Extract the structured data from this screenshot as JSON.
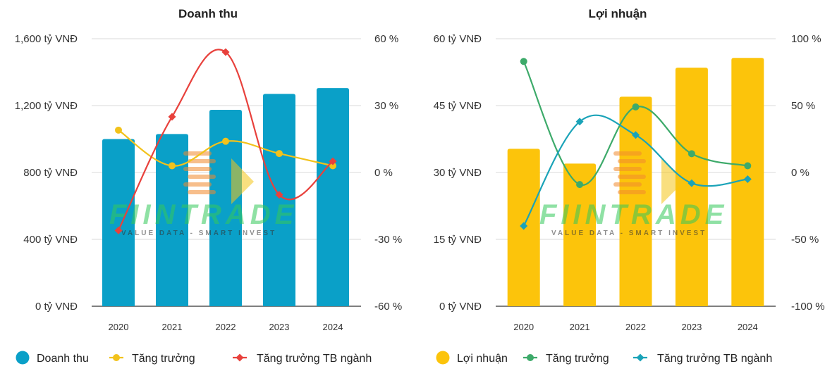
{
  "colors": {
    "revenue_bar": "#0aa0c8",
    "growth_yellow": "#f2c21b",
    "industry_red": "#e8413c",
    "profit_bar": "#fcc40b",
    "growth_green": "#3daa6a",
    "industry_teal": "#1aa3b8",
    "watermark_green": "#35c95a",
    "watermark_orange": "#f28a2e",
    "watermark_yellow": "#f5c518"
  },
  "watermark": {
    "brand": "FIINTRADE",
    "tagline": "VALUE DATA - SMART INVEST"
  },
  "chart_data": [
    {
      "type": "bar",
      "title": "Doanh thu",
      "categories": [
        "2020",
        "2021",
        "2022",
        "2023",
        "2024"
      ],
      "left_axis": {
        "ylim": [
          0,
          1600
        ],
        "ticks": [
          0,
          400,
          800,
          1200,
          1600
        ],
        "tick_labels": [
          "0 tỷ VNĐ",
          "400 tỷ VNĐ",
          "800 tỷ VNĐ",
          "1,200 tỷ VNĐ",
          "1,600 tỷ VNĐ"
        ]
      },
      "right_axis": {
        "ylim": [
          -60,
          60
        ],
        "ticks": [
          -60,
          -30,
          0,
          30,
          60
        ],
        "tick_labels": [
          "-60 %",
          "-30 %",
          "0 %",
          "30 %",
          "60 %"
        ]
      },
      "bars": {
        "name": "Doanh thu",
        "values": [
          1000,
          1030,
          1175,
          1270,
          1305
        ]
      },
      "lines": [
        {
          "name": "Tăng trưởng",
          "values": [
            19,
            3,
            14,
            8.5,
            3
          ],
          "marker": "circle",
          "color_key": "growth_yellow"
        },
        {
          "name": "Tăng trưởng TB ngành",
          "values": [
            -26,
            25,
            54,
            -10,
            5
          ],
          "marker": "diamond",
          "color_key": "industry_red"
        }
      ],
      "legend": [
        "Doanh thu",
        "Tăng trưởng",
        "Tăng trưởng TB ngành"
      ]
    },
    {
      "type": "bar",
      "title": "Lợi nhuận",
      "categories": [
        "2020",
        "2021",
        "2022",
        "2023",
        "2024"
      ],
      "left_axis": {
        "ylim": [
          0,
          60
        ],
        "ticks": [
          0,
          15,
          30,
          45,
          60
        ],
        "tick_labels": [
          "0 tỷ VNĐ",
          "15 tỷ VNĐ",
          "30 tỷ VNĐ",
          "45 tỷ VNĐ",
          "60 tỷ VNĐ"
        ]
      },
      "right_axis": {
        "ylim": [
          -100,
          100
        ],
        "ticks": [
          -100,
          -50,
          0,
          50,
          100
        ],
        "tick_labels": [
          "-100 %",
          "-50 %",
          "0 %",
          "50 %",
          "100 %"
        ]
      },
      "bars": {
        "name": "Lợi nhuận",
        "values": [
          35.3,
          32,
          47,
          53.5,
          55.7
        ]
      },
      "lines": [
        {
          "name": "Tăng trưởng",
          "values": [
            83,
            -9,
            49,
            14,
            5
          ],
          "marker": "circle",
          "color_key": "growth_green"
        },
        {
          "name": "Tăng trưởng TB ngành",
          "values": [
            -40,
            38,
            28,
            -8,
            -5
          ],
          "marker": "diamond",
          "color_key": "industry_teal"
        }
      ],
      "legend": [
        "Lợi nhuận",
        "Tăng trưởng",
        "Tăng trưởng TB ngành"
      ]
    }
  ]
}
